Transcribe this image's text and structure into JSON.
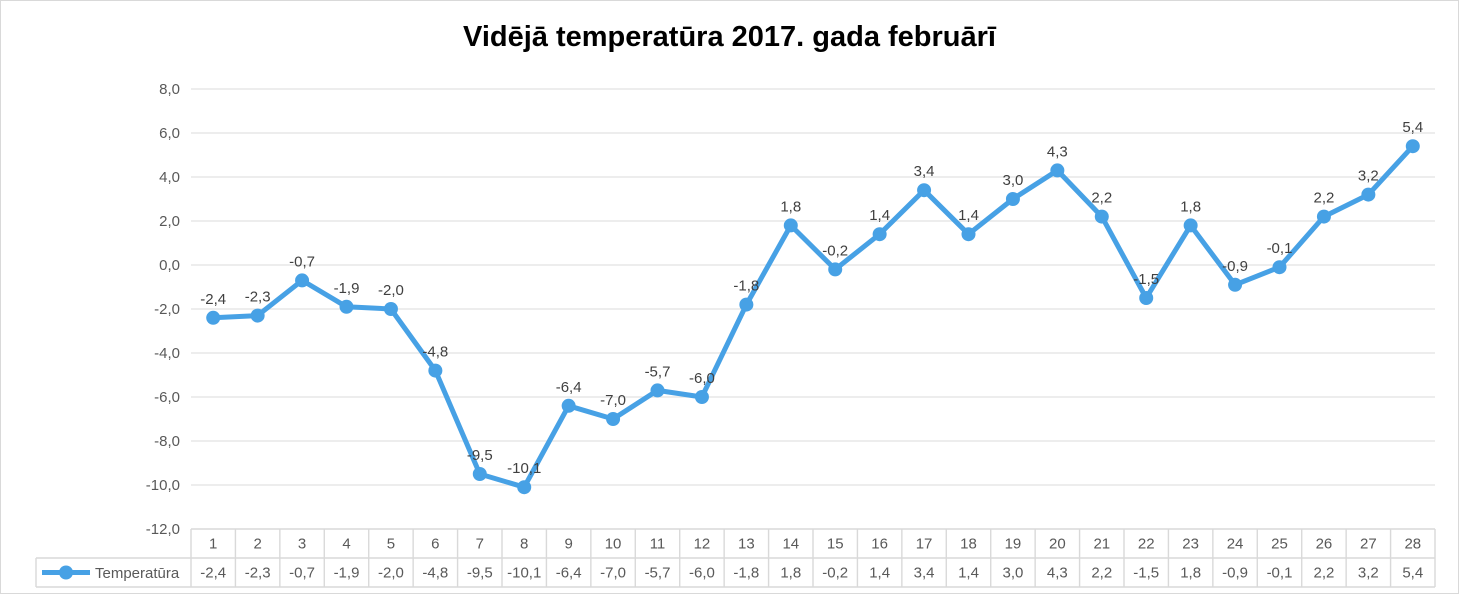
{
  "chart_data": {
    "type": "line",
    "title": "Vidējā temperatūra 2017. gada februārī",
    "categories": [
      1,
      2,
      3,
      4,
      5,
      6,
      7,
      8,
      9,
      10,
      11,
      12,
      13,
      14,
      15,
      16,
      17,
      18,
      19,
      20,
      21,
      22,
      23,
      24,
      25,
      26,
      27,
      28
    ],
    "series": [
      {
        "name": "Temperatūra",
        "values": [
          -2.4,
          -2.3,
          -0.7,
          -1.9,
          -2.0,
          -4.8,
          -9.5,
          -10.1,
          -6.4,
          -7.0,
          -5.7,
          -6.0,
          -1.8,
          1.8,
          -0.2,
          1.4,
          3.4,
          1.4,
          3.0,
          4.3,
          2.2,
          -1.5,
          1.8,
          -0.9,
          -0.1,
          2.2,
          3.2,
          5.4
        ]
      }
    ],
    "y_axis": {
      "min": -12,
      "max": 8,
      "step": 2,
      "tick_labels": [
        "8,0",
        "6,0",
        "4,0",
        "2,0",
        "0,0",
        "-2,0",
        "-4,0",
        "-6,0",
        "-8,0",
        "-10,0",
        "-12,0"
      ]
    },
    "decimal_separator": ",",
    "grid": true,
    "data_labels_shown": true,
    "data_table_shown": true,
    "legend": {
      "label": "Temperatūra",
      "position": "data-table-left"
    },
    "colors": {
      "series_line": "#47A1E5",
      "gridline": "#E7E7E7",
      "axis_text": "#595959",
      "data_label_text": "#404040",
      "table_border": "#D9D9D9",
      "title_text": "#000000"
    }
  }
}
